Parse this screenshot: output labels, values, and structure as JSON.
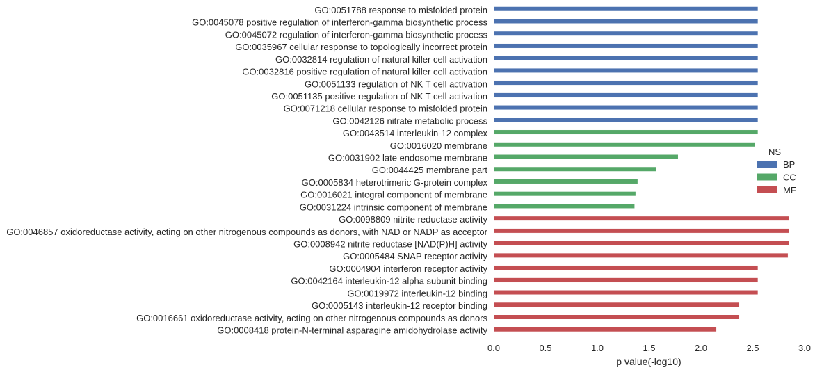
{
  "chart_data": {
    "type": "bar",
    "orientation": "horizontal",
    "xlabel": "p value(-log10)",
    "ylabel": "",
    "xlim": [
      0.0,
      3.0
    ],
    "xticks": [
      "0.0",
      "0.5",
      "1.0",
      "1.5",
      "2.0",
      "2.5",
      "3.0"
    ],
    "grid": false,
    "legend": {
      "title": "NS",
      "position": "right",
      "entries": [
        {
          "name": "BP",
          "color": "#4C72B0"
        },
        {
          "name": "CC",
          "color": "#55A868"
        },
        {
          "name": "MF",
          "color": "#C44E52"
        }
      ]
    },
    "bars": [
      {
        "label": "GO:0051788 response to misfolded protein",
        "ns": "BP",
        "value": 2.55
      },
      {
        "label": "GO:0045078 positive regulation of interferon-gamma biosynthetic process",
        "ns": "BP",
        "value": 2.55
      },
      {
        "label": "GO:0045072 regulation of interferon-gamma biosynthetic process",
        "ns": "BP",
        "value": 2.55
      },
      {
        "label": "GO:0035967 cellular response to topologically incorrect protein",
        "ns": "BP",
        "value": 2.55
      },
      {
        "label": "GO:0032814 regulation of natural killer cell activation",
        "ns": "BP",
        "value": 2.55
      },
      {
        "label": "GO:0032816 positive regulation of natural killer cell activation",
        "ns": "BP",
        "value": 2.55
      },
      {
        "label": "GO:0051133 regulation of NK T cell activation",
        "ns": "BP",
        "value": 2.55
      },
      {
        "label": "GO:0051135 positive regulation of NK T cell activation",
        "ns": "BP",
        "value": 2.55
      },
      {
        "label": "GO:0071218 cellular response to misfolded protein",
        "ns": "BP",
        "value": 2.55
      },
      {
        "label": "GO:0042126 nitrate metabolic process",
        "ns": "BP",
        "value": 2.55
      },
      {
        "label": "GO:0043514 interleukin-12 complex",
        "ns": "CC",
        "value": 2.55
      },
      {
        "label": "GO:0016020 membrane",
        "ns": "CC",
        "value": 2.52
      },
      {
        "label": "GO:0031902 late endosome membrane",
        "ns": "CC",
        "value": 1.78
      },
      {
        "label": "GO:0044425 membrane part",
        "ns": "CC",
        "value": 1.57
      },
      {
        "label": "GO:0005834 heterotrimeric G-protein complex",
        "ns": "CC",
        "value": 1.39
      },
      {
        "label": "GO:0016021 integral component of membrane",
        "ns": "CC",
        "value": 1.37
      },
      {
        "label": "GO:0031224 intrinsic component of membrane",
        "ns": "CC",
        "value": 1.36
      },
      {
        "label": "GO:0098809 nitrite reductase activity",
        "ns": "MF",
        "value": 2.85
      },
      {
        "label": "GO:0046857 oxidoreductase activity, acting on other nitrogenous compounds as donors, with NAD or NADP as acceptor",
        "ns": "MF",
        "value": 2.85
      },
      {
        "label": "GO:0008942 nitrite reductase [NAD(P)H] activity",
        "ns": "MF",
        "value": 2.85
      },
      {
        "label": "GO:0005484 SNAP receptor activity",
        "ns": "MF",
        "value": 2.84
      },
      {
        "label": "GO:0004904 interferon receptor activity",
        "ns": "MF",
        "value": 2.55
      },
      {
        "label": "GO:0042164 interleukin-12 alpha subunit binding",
        "ns": "MF",
        "value": 2.55
      },
      {
        "label": "GO:0019972 interleukin-12 binding",
        "ns": "MF",
        "value": 2.55
      },
      {
        "label": "GO:0005143 interleukin-12 receptor binding",
        "ns": "MF",
        "value": 2.37
      },
      {
        "label": "GO:0016661 oxidoreductase activity, acting on other nitrogenous compounds as donors",
        "ns": "MF",
        "value": 2.37
      },
      {
        "label": "GO:0008418 protein-N-terminal asparagine amidohydrolase activity",
        "ns": "MF",
        "value": 2.15
      }
    ]
  }
}
